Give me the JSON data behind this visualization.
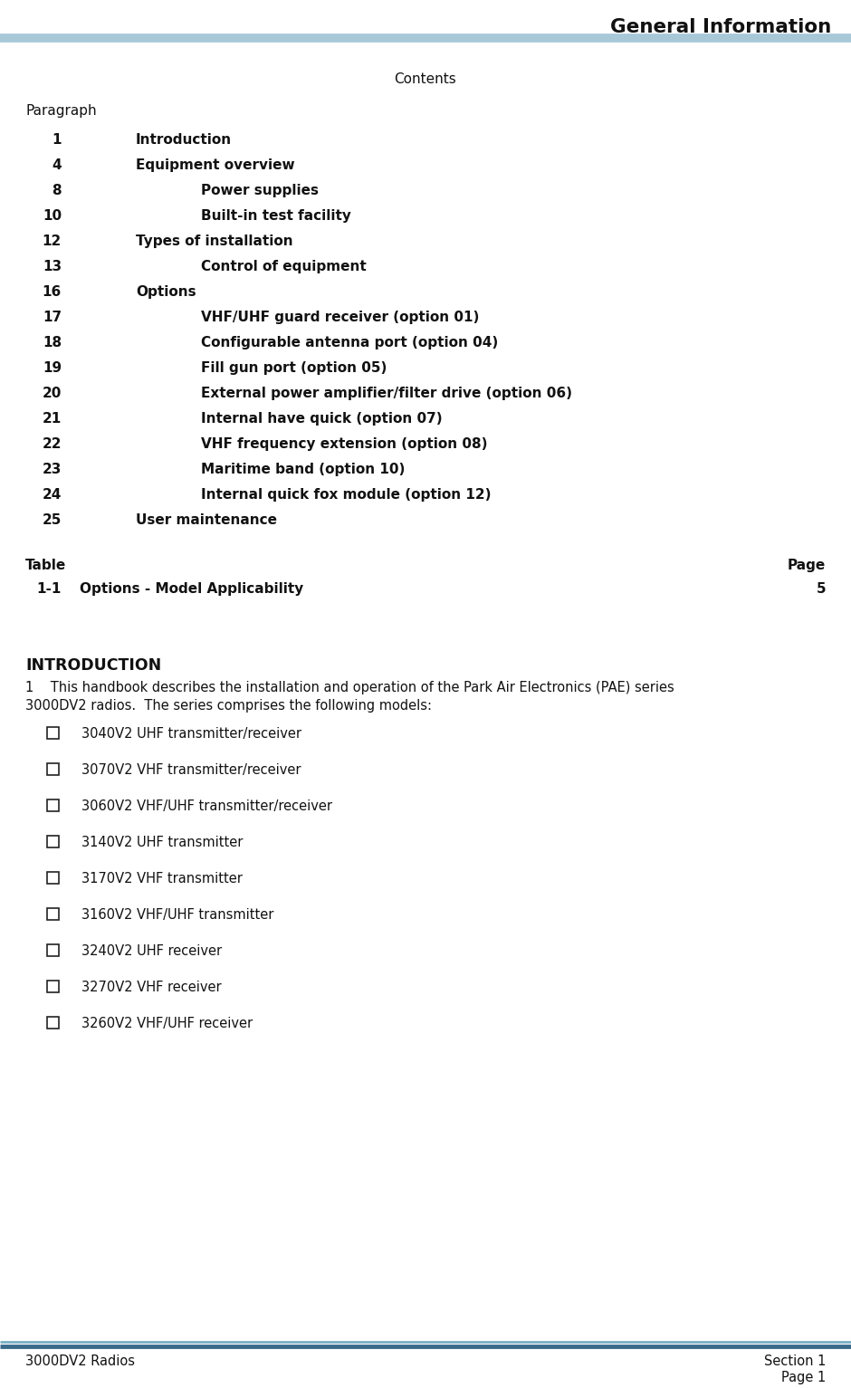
{
  "title": "General Information",
  "header_line_color": "#a8c8d8",
  "footer_line_color_light": "#7aafc4",
  "footer_line_color_dark": "#3a6a8a",
  "bg_color": "#ffffff",
  "contents_heading": "Contents",
  "col1_heading": "Paragraph",
  "toc_entries": [
    {
      "num": "1",
      "indent": 1,
      "text": "Introduction"
    },
    {
      "num": "4",
      "indent": 1,
      "text": "Equipment overview"
    },
    {
      "num": "8",
      "indent": 2,
      "text": "Power supplies"
    },
    {
      "num": "10",
      "indent": 2,
      "text": "Built-in test facility"
    },
    {
      "num": "12",
      "indent": 1,
      "text": "Types of installation"
    },
    {
      "num": "13",
      "indent": 2,
      "text": "Control of equipment"
    },
    {
      "num": "16",
      "indent": 1,
      "text": "Options"
    },
    {
      "num": "17",
      "indent": 2,
      "text": "VHF/UHF guard receiver (option 01)"
    },
    {
      "num": "18",
      "indent": 2,
      "text": "Configurable antenna port (option 04)"
    },
    {
      "num": "19",
      "indent": 2,
      "text": "Fill gun port (option 05)"
    },
    {
      "num": "20",
      "indent": 2,
      "text": "External power amplifier/filter drive (option 06)"
    },
    {
      "num": "21",
      "indent": 2,
      "text": "Internal have quick (option 07)"
    },
    {
      "num": "22",
      "indent": 2,
      "text": "VHF frequency extension (option 08)"
    },
    {
      "num": "23",
      "indent": 2,
      "text": "Maritime band (option 10)"
    },
    {
      "num": "24",
      "indent": 2,
      "text": "Internal quick fox module (option 12)"
    },
    {
      "num": "25",
      "indent": 1,
      "text": "User maintenance"
    }
  ],
  "table_heading_left": "Table",
  "table_heading_right": "Page",
  "table_entries": [
    {
      "num": "1-1",
      "text": "Options - Model Applicability",
      "page": "5"
    }
  ],
  "intro_heading": "INTRODUCTION",
  "intro_line1": "1    This handbook describes the installation and operation of the Park Air Electronics (PAE) series",
  "intro_line2": "3000DV2 radios.  The series comprises the following models:",
  "bullet_items": [
    "3040V2 UHF transmitter/receiver",
    "3070V2 VHF transmitter/receiver",
    "3060V2 VHF/UHF transmitter/receiver",
    "3140V2 UHF transmitter",
    "3170V2 VHF transmitter",
    "3160V2 VHF/UHF transmitter",
    "3240V2 UHF receiver",
    "3270V2 VHF receiver",
    "3260V2 VHF/UHF receiver"
  ],
  "footer_left": "3000DV2 Radios",
  "footer_right1": "Section 1",
  "footer_right2": "Page 1"
}
